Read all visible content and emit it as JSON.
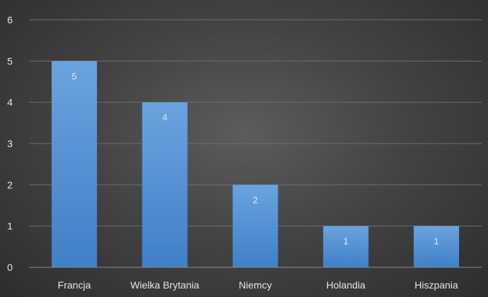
{
  "chart_data": {
    "type": "bar",
    "title": "",
    "xlabel": "",
    "ylabel": "",
    "categories": [
      "Francja",
      "Wielka Brytania",
      "Niemcy",
      "Holandia",
      "Hiszpania"
    ],
    "values": [
      5,
      4,
      2,
      1,
      1
    ],
    "data_labels": [
      "5",
      "4",
      "2",
      "1",
      "1"
    ],
    "ylim": [
      0,
      6
    ],
    "yticks": [
      "0",
      "1",
      "2",
      "3",
      "4",
      "5",
      "6"
    ],
    "grid": true,
    "legend": "none",
    "colors": {
      "bar_top": "#6aa3df",
      "bar_bottom": "#3f80c8",
      "background": "#464646"
    }
  }
}
